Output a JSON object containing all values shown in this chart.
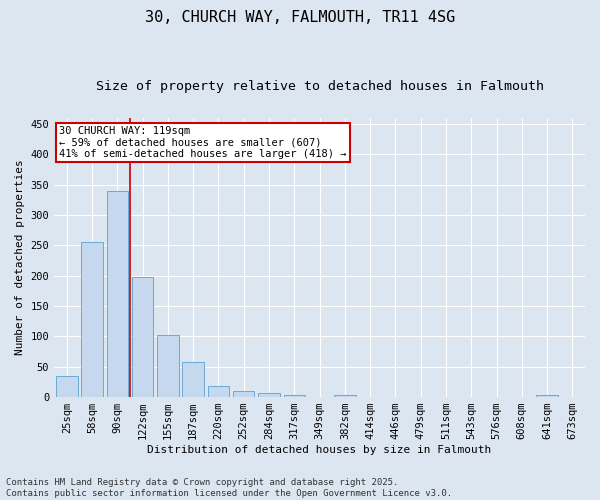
{
  "title": "30, CHURCH WAY, FALMOUTH, TR11 4SG",
  "subtitle": "Size of property relative to detached houses in Falmouth",
  "xlabel": "Distribution of detached houses by size in Falmouth",
  "ylabel": "Number of detached properties",
  "categories": [
    "25sqm",
    "58sqm",
    "90sqm",
    "122sqm",
    "155sqm",
    "187sqm",
    "220sqm",
    "252sqm",
    "284sqm",
    "317sqm",
    "349sqm",
    "382sqm",
    "414sqm",
    "446sqm",
    "479sqm",
    "511sqm",
    "543sqm",
    "576sqm",
    "608sqm",
    "641sqm",
    "673sqm"
  ],
  "values": [
    35,
    255,
    340,
    198,
    103,
    57,
    19,
    10,
    7,
    4,
    0,
    3,
    0,
    0,
    0,
    0,
    0,
    0,
    0,
    3,
    0
  ],
  "bar_color": "#c5d8ee",
  "bar_edge_color": "#6aaad4",
  "background_color": "#dce6f1",
  "plot_bg_color": "#dce6f1",
  "grid_color": "#ffffff",
  "red_line_x": 2.5,
  "red_line_color": "#cc0000",
  "annotation_text": "30 CHURCH WAY: 119sqm\n← 59% of detached houses are smaller (607)\n41% of semi-detached houses are larger (418) →",
  "annotation_box_color": "#cc0000",
  "annotation_text_color": "#000000",
  "ylim": [
    0,
    460
  ],
  "yticks": [
    0,
    50,
    100,
    150,
    200,
    250,
    300,
    350,
    400,
    450
  ],
  "footer": "Contains HM Land Registry data © Crown copyright and database right 2025.\nContains public sector information licensed under the Open Government Licence v3.0.",
  "title_fontsize": 11,
  "subtitle_fontsize": 9.5,
  "xlabel_fontsize": 8,
  "ylabel_fontsize": 8,
  "tick_fontsize": 7.5,
  "annotation_fontsize": 7.5,
  "footer_fontsize": 6.5
}
